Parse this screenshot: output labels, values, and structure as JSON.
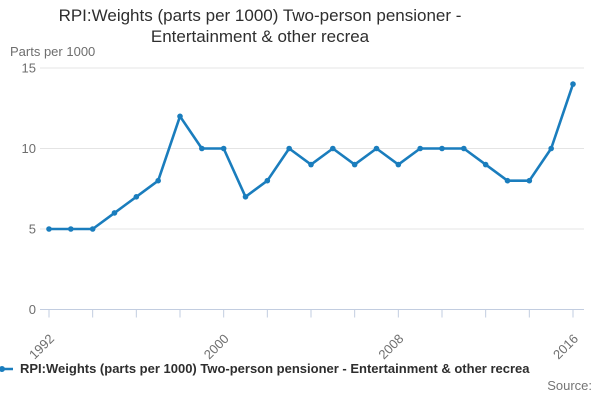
{
  "title": {
    "line1": "RPI:Weights (parts per 1000) Two-person pensioner -",
    "line2": "Entertainment & other recrea"
  },
  "y_axis_unit": "Parts per 1000",
  "legend": {
    "series_label": "RPI:Weights (parts per 1000) Two-person pensioner - Entertainment & other recrea"
  },
  "source_label": "Source:",
  "colors": {
    "series_line": "#1a7dbd",
    "gridline": "#e4e4e4",
    "axis_line": "#c2cde0",
    "tick_label": "#6e6e6e",
    "title_text": "#2e2e2e",
    "legend_text": "#2e2e2e",
    "source_text": "#757575"
  },
  "chart_data": {
    "type": "line",
    "title": "RPI:Weights (parts per 1000) Two-person pensioner - Entertainment & other recrea",
    "ylabel": "Parts per 1000",
    "xlabel": "",
    "x": [
      1992,
      1993,
      1994,
      1995,
      1996,
      1997,
      1998,
      1999,
      2000,
      2001,
      2002,
      2003,
      2004,
      2005,
      2006,
      2007,
      2008,
      2009,
      2010,
      2011,
      2012,
      2013,
      2014,
      2015,
      2016
    ],
    "series": [
      {
        "name": "RPI:Weights (parts per 1000) Two-person pensioner - Entertainment & other recrea",
        "values": [
          5,
          5,
          5,
          6,
          7,
          8,
          12,
          10,
          10,
          7,
          8,
          10,
          9,
          10,
          9,
          10,
          9,
          10,
          10,
          10,
          9,
          8,
          8,
          10,
          14
        ]
      }
    ],
    "ylim": [
      0,
      15
    ],
    "yticks": [
      0,
      5,
      10,
      15
    ],
    "xticks_labeled": [
      1992,
      2000,
      2008,
      2016
    ],
    "xtick_minor_step": 2,
    "grid": "horizontal",
    "markers": true,
    "legend_position": "bottom-left"
  }
}
